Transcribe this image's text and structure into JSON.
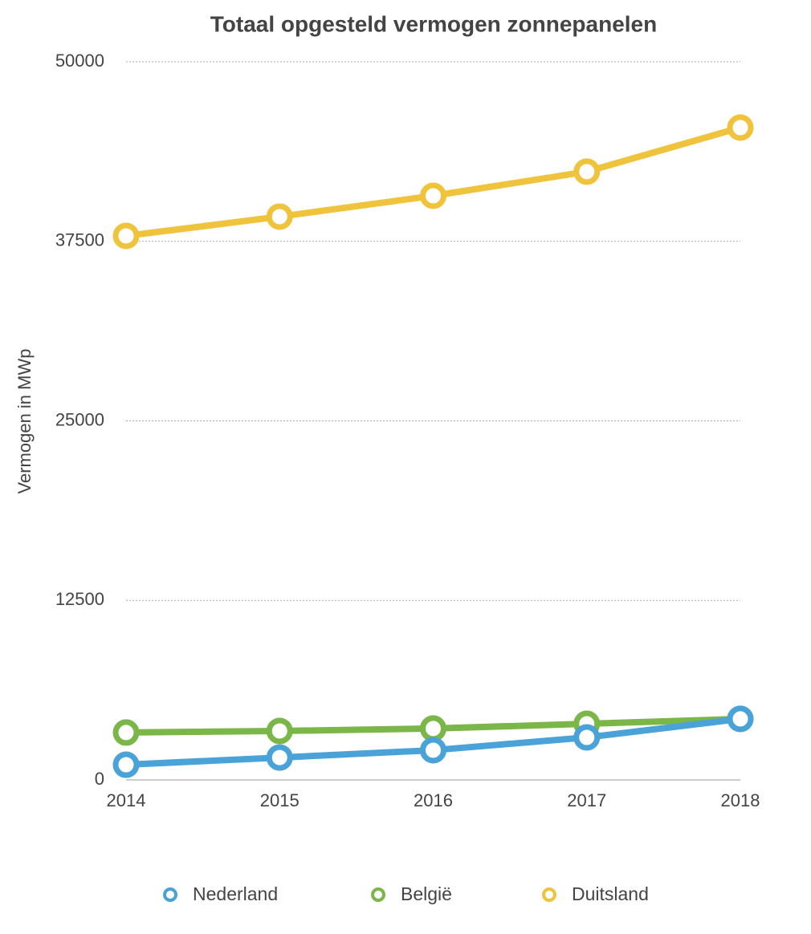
{
  "chart_data": {
    "type": "line",
    "title": "Totaal opgesteld vermogen zonnepanelen",
    "y_label": "Vermogen in MWp",
    "categories": [
      "2014",
      "2015",
      "2016",
      "2017",
      "2018"
    ],
    "series": [
      {
        "name": "Nederland",
        "color": "#4aa3d8",
        "values": [
          1060,
          1560,
          2070,
          2960,
          4250
        ]
      },
      {
        "name": "België",
        "color": "#7ab648",
        "values": [
          3300,
          3410,
          3580,
          3910,
          4250
        ]
      },
      {
        "name": "Duitsland",
        "color": "#f0c33c",
        "values": [
          37880,
          39220,
          40670,
          42350,
          45420
        ]
      }
    ],
    "ylim": [
      0,
      50000
    ],
    "yticks": [
      0,
      12500,
      25000,
      37500,
      50000
    ],
    "grid": true,
    "legend": "bottom"
  }
}
